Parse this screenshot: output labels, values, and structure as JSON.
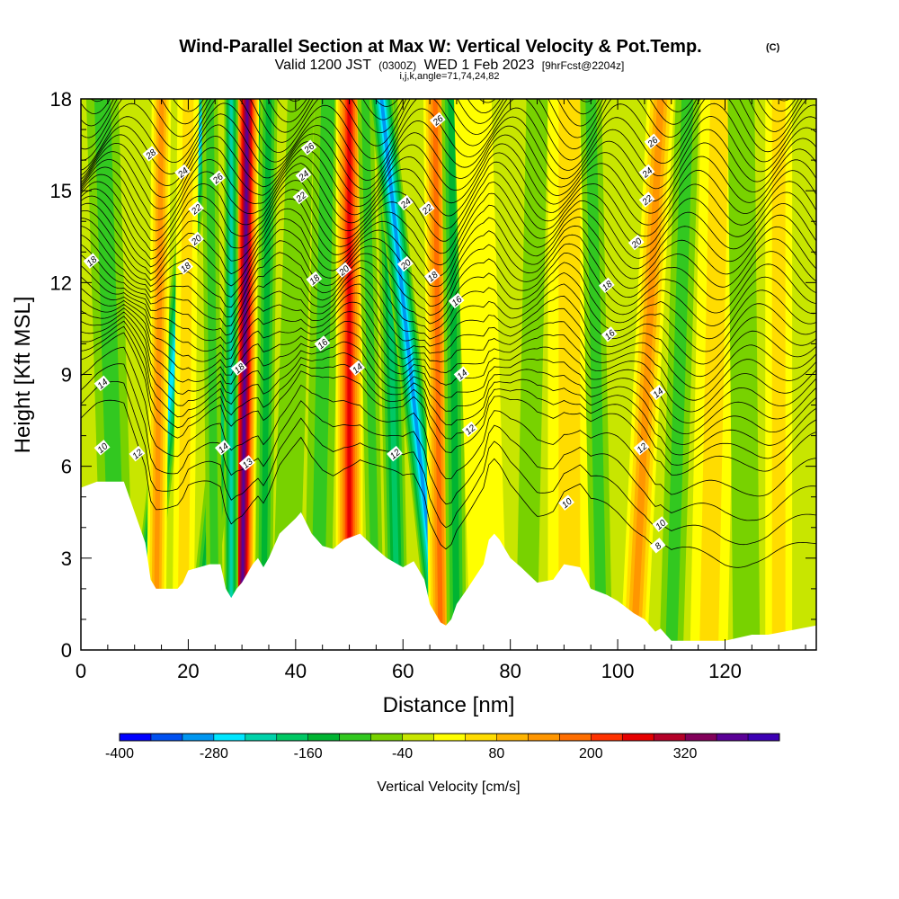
{
  "header": {
    "title": "Wind-Parallel Section at Max W: Vertical Velocity & Pot.Temp.",
    "copyright": "(C)",
    "valid_prefix": "Valid 1200 JST",
    "valid_utc": "(0300Z)",
    "valid_date": "WED 1 Feb 2023",
    "forecast": "[9hrFcst@2204z]",
    "grid_info": "i,j,k,angle=71,74,24,82"
  },
  "chart_data": {
    "type": "heatmap",
    "xlabel": "Distance [nm]",
    "ylabel": "Height [Kft MSL]",
    "xlim": [
      0,
      137
    ],
    "ylim": [
      0,
      18
    ],
    "x_ticks": [
      "0",
      "20",
      "40",
      "60",
      "80",
      "100",
      "120"
    ],
    "y_ticks": [
      "0",
      "3",
      "6",
      "9",
      "12",
      "15",
      "18"
    ],
    "colorbar": {
      "label": "Vertical Velocity [cm/s]",
      "tick_labels": [
        "-400",
        "-280",
        "-160",
        "-40",
        "80",
        "200",
        "320"
      ],
      "min": -400,
      "max": 440,
      "step": 40,
      "colors": [
        "#0000ff",
        "#0050f0",
        "#0096f0",
        "#00e6ff",
        "#00d2aa",
        "#00c864",
        "#00b432",
        "#32c820",
        "#78d200",
        "#c8e600",
        "#ffff00",
        "#ffdc00",
        "#ffb400",
        "#ff9600",
        "#ff6e00",
        "#ff3200",
        "#e60000",
        "#b40028",
        "#82005a",
        "#5a0096",
        "#3c00b4"
      ]
    },
    "terrain": [
      [
        0,
        5.3
      ],
      [
        3,
        5.5
      ],
      [
        8,
        5.5
      ],
      [
        10,
        4.5
      ],
      [
        12,
        3.5
      ],
      [
        13,
        2.3
      ],
      [
        14,
        2
      ],
      [
        18,
        2
      ],
      [
        19,
        2.2
      ],
      [
        20,
        2.6
      ],
      [
        24,
        2.8
      ],
      [
        26,
        2.8
      ],
      [
        27,
        2
      ],
      [
        28,
        1.7
      ],
      [
        29,
        2
      ],
      [
        30,
        2.2
      ],
      [
        32,
        2.8
      ],
      [
        33,
        3
      ],
      [
        34,
        2.7
      ],
      [
        35,
        3
      ],
      [
        37,
        3.8
      ],
      [
        40,
        4.3
      ],
      [
        41,
        4.5
      ],
      [
        43,
        3.8
      ],
      [
        45,
        3.4
      ],
      [
        47,
        3.3
      ],
      [
        49,
        3.6
      ],
      [
        52,
        3.8
      ],
      [
        55,
        3.3
      ],
      [
        57,
        3.0
      ],
      [
        60,
        2.7
      ],
      [
        62,
        2.9
      ],
      [
        64,
        2.3
      ],
      [
        65,
        1.5
      ],
      [
        67,
        0.9
      ],
      [
        68,
        0.8
      ],
      [
        69,
        1.0
      ],
      [
        70,
        1.5
      ],
      [
        72,
        2.0
      ],
      [
        75,
        2.8
      ],
      [
        76,
        3.6
      ],
      [
        77,
        3.8
      ],
      [
        78,
        3.6
      ],
      [
        80,
        3.0
      ],
      [
        82,
        2.7
      ],
      [
        85,
        2.2
      ],
      [
        88,
        2.3
      ],
      [
        90,
        2.8
      ],
      [
        93,
        2.7
      ],
      [
        95,
        2.0
      ],
      [
        98,
        1.8
      ],
      [
        100,
        1.6
      ],
      [
        103,
        1.2
      ],
      [
        105,
        1.0
      ],
      [
        107,
        0.6
      ],
      [
        108,
        0.7
      ],
      [
        109,
        0.5
      ],
      [
        110,
        0.3
      ],
      [
        115,
        0.3
      ],
      [
        120,
        0.3
      ],
      [
        125,
        0.5
      ],
      [
        128,
        0.5
      ],
      [
        137,
        0.8
      ]
    ],
    "bands": [
      {
        "x0": 1,
        "x1": 0.2,
        "width": 2.5,
        "value": -20
      },
      {
        "x0": 7,
        "x1": 4,
        "width": 3,
        "value": -100
      },
      {
        "x0": 11,
        "x1": 23,
        "width": 2.2,
        "value": -280
      },
      {
        "x0": 14,
        "x1": 15,
        "width": 1.8,
        "value": 120
      },
      {
        "x0": 19,
        "x1": 20,
        "width": 2,
        "value": 60
      },
      {
        "x0": 22,
        "x1": 33,
        "width": 2.2,
        "value": -200
      },
      {
        "x0": 25,
        "x1": 24,
        "width": 1.5,
        "value": -120
      },
      {
        "x0": 30,
        "x1": 31,
        "width": 2.2,
        "value": 380
      },
      {
        "x0": 28,
        "x1": 28,
        "width": 1.3,
        "value": -220
      },
      {
        "x0": 34,
        "x1": 35,
        "width": 1.6,
        "value": -140
      },
      {
        "x0": 38,
        "x1": 41,
        "width": 2.5,
        "value": -60
      },
      {
        "x0": 44,
        "x1": 46,
        "width": 2.5,
        "value": -100
      },
      {
        "x0": 50,
        "x1": 50,
        "width": 2.5,
        "value": 240
      },
      {
        "x0": 55,
        "x1": 53,
        "width": 1.5,
        "value": -120
      },
      {
        "x0": 59,
        "x1": 57,
        "width": 2,
        "value": -200
      },
      {
        "x0": 67,
        "x1": 56,
        "width": 2.2,
        "value": -300
      },
      {
        "x0": 67,
        "x1": 66,
        "width": 2.2,
        "value": 180
      },
      {
        "x0": 70,
        "x1": 69,
        "width": 1.8,
        "value": -160
      },
      {
        "x0": 76,
        "x1": 73,
        "width": 3.5,
        "value": 20
      },
      {
        "x0": 83,
        "x1": 85,
        "width": 2,
        "value": -80
      },
      {
        "x0": 91,
        "x1": 91,
        "width": 4,
        "value": 40
      },
      {
        "x0": 97,
        "x1": 95,
        "width": 2,
        "value": -100
      },
      {
        "x0": 103,
        "x1": 108,
        "width": 2.5,
        "value": 140
      },
      {
        "x0": 110,
        "x1": 113,
        "width": 2.2,
        "value": -120
      },
      {
        "x0": 117,
        "x1": 119,
        "width": 3.5,
        "value": 60
      },
      {
        "x0": 124,
        "x1": 123,
        "width": 2.5,
        "value": -60
      },
      {
        "x0": 130,
        "x1": 130,
        "width": 2.5,
        "value": 40
      },
      {
        "x0": 135,
        "x1": 135,
        "width": 2,
        "value": -40
      }
    ],
    "theta_levels": [
      6,
      7,
      8,
      9,
      10,
      10.5,
      11,
      11.5,
      12,
      12.5,
      13,
      13.5,
      14,
      14.5,
      15,
      15.5,
      16,
      16.5,
      17,
      17.5,
      18,
      18.5,
      19,
      19.5,
      20,
      20.5,
      21,
      21.5,
      22,
      22.5,
      23,
      23.5,
      24,
      24.5,
      25,
      25.5,
      26,
      26.5,
      27,
      28
    ],
    "contour_labels": [
      {
        "text": "28",
        "x": 13,
        "y": 16.2
      },
      {
        "text": "24",
        "x": 19,
        "y": 15.6
      },
      {
        "text": "26",
        "x": 25.5,
        "y": 15.4
      },
      {
        "text": "22",
        "x": 21.5,
        "y": 14.4
      },
      {
        "text": "20",
        "x": 21.5,
        "y": 13.4
      },
      {
        "text": "18",
        "x": 19.5,
        "y": 12.5
      },
      {
        "text": "18",
        "x": 2,
        "y": 12.7
      },
      {
        "text": "14",
        "x": 4,
        "y": 8.7
      },
      {
        "text": "10",
        "x": 4,
        "y": 6.6
      },
      {
        "text": "12",
        "x": 10.5,
        "y": 6.4
      },
      {
        "text": "14",
        "x": 26.5,
        "y": 6.6
      },
      {
        "text": "13",
        "x": 31,
        "y": 6.1
      },
      {
        "text": "18",
        "x": 29.5,
        "y": 9.2
      },
      {
        "text": "26",
        "x": 42.5,
        "y": 16.4
      },
      {
        "text": "24",
        "x": 41.5,
        "y": 15.5
      },
      {
        "text": "22",
        "x": 41,
        "y": 14.8
      },
      {
        "text": "18",
        "x": 43.5,
        "y": 12.1
      },
      {
        "text": "20",
        "x": 49,
        "y": 12.4
      },
      {
        "text": "16",
        "x": 45,
        "y": 10.0
      },
      {
        "text": "14",
        "x": 51.5,
        "y": 9.2
      },
      {
        "text": "12",
        "x": 58.5,
        "y": 6.4
      },
      {
        "text": "24",
        "x": 60.5,
        "y": 14.6
      },
      {
        "text": "22",
        "x": 64.5,
        "y": 14.4
      },
      {
        "text": "20",
        "x": 60.5,
        "y": 12.6
      },
      {
        "text": "18",
        "x": 65.5,
        "y": 12.2
      },
      {
        "text": "16",
        "x": 70,
        "y": 11.4
      },
      {
        "text": "26",
        "x": 66.5,
        "y": 17.3
      },
      {
        "text": "14",
        "x": 71,
        "y": 9.0
      },
      {
        "text": "12",
        "x": 72.5,
        "y": 7.2
      },
      {
        "text": "18",
        "x": 98,
        "y": 11.9
      },
      {
        "text": "16",
        "x": 98.5,
        "y": 10.3
      },
      {
        "text": "20",
        "x": 103.5,
        "y": 13.3
      },
      {
        "text": "22",
        "x": 105.5,
        "y": 14.7
      },
      {
        "text": "24",
        "x": 105.5,
        "y": 15.6
      },
      {
        "text": "26",
        "x": 106.5,
        "y": 16.6
      },
      {
        "text": "14",
        "x": 107.5,
        "y": 8.4
      },
      {
        "text": "12",
        "x": 104.5,
        "y": 6.6
      },
      {
        "text": "10",
        "x": 90.5,
        "y": 4.8
      },
      {
        "text": "10",
        "x": 108,
        "y": 4.1
      },
      {
        "text": "8",
        "x": 107.5,
        "y": 3.4
      }
    ]
  }
}
